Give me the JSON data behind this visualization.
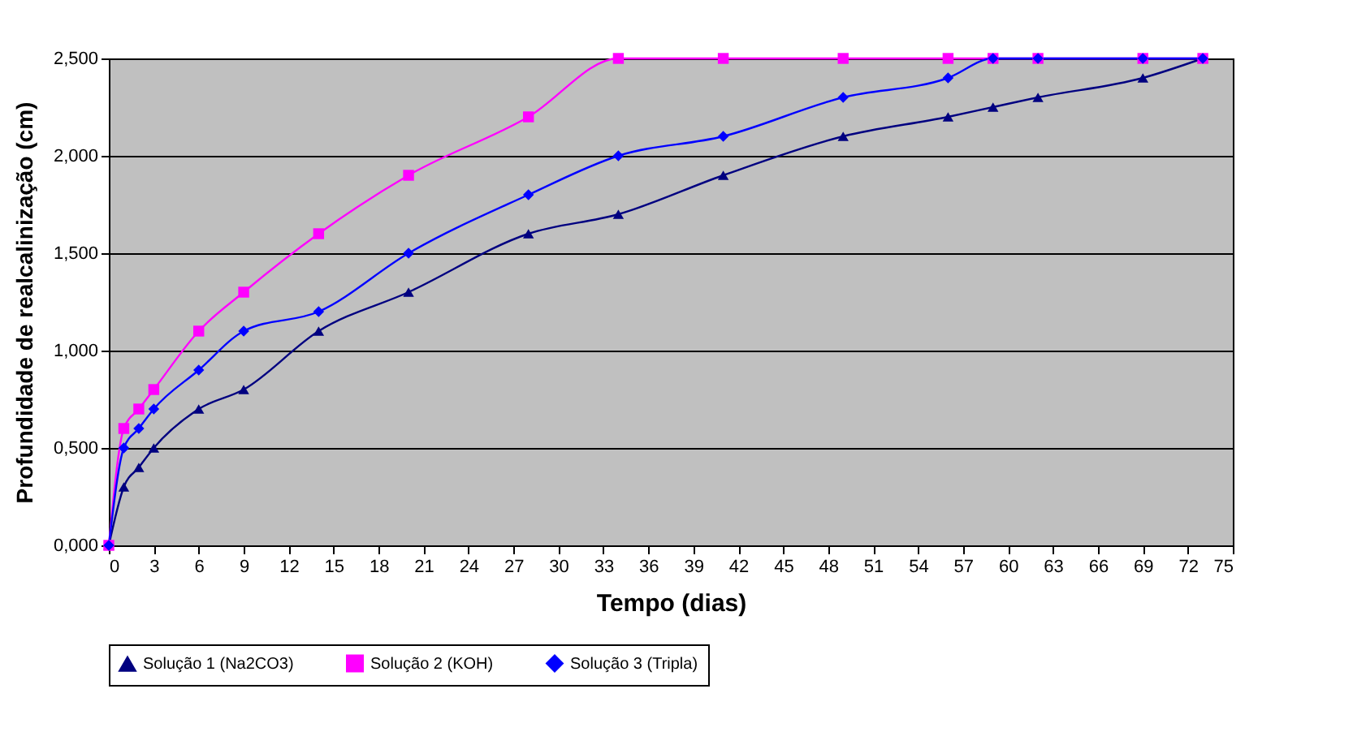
{
  "chart_data": {
    "type": "line",
    "xlabel": "Tempo (dias)",
    "ylabel": "Profundidade de realcalinização (cm)",
    "x": [
      0,
      1,
      2,
      3,
      6,
      9,
      14,
      20,
      28,
      34,
      41,
      49,
      56,
      59,
      62,
      69,
      73
    ],
    "series": [
      {
        "name": "Solução 1 (Na2CO3)",
        "color": "#000080",
        "marker": "triangle",
        "values": [
          0,
          0.3,
          0.4,
          0.5,
          0.7,
          0.8,
          1.1,
          1.3,
          1.6,
          1.7,
          1.9,
          2.1,
          2.2,
          2.25,
          2.3,
          2.4,
          2.5
        ]
      },
      {
        "name": "Solução 2 (KOH)",
        "color": "#ff00ff",
        "marker": "square",
        "values": [
          0,
          0.6,
          0.7,
          0.8,
          1.1,
          1.3,
          1.6,
          1.9,
          2.2,
          2.5,
          2.5,
          2.5,
          2.5,
          2.5,
          2.5,
          2.5,
          2.5
        ]
      },
      {
        "name": "Solução 3 (Tripla)",
        "color": "#0000ff",
        "marker": "diamond",
        "values": [
          0,
          0.5,
          0.6,
          0.7,
          0.9,
          1.1,
          1.2,
          1.5,
          1.8,
          2.0,
          2.1,
          2.3,
          2.4,
          2.5,
          2.5,
          2.5,
          2.5
        ]
      }
    ],
    "xlim": [
      0,
      75
    ],
    "xticks": [
      0,
      3,
      6,
      9,
      12,
      15,
      18,
      21,
      24,
      27,
      30,
      33,
      36,
      39,
      42,
      45,
      48,
      51,
      54,
      57,
      60,
      63,
      66,
      69,
      72,
      75
    ],
    "ylim": [
      0,
      2.5
    ],
    "yticks": [
      {
        "value": 0,
        "label": "0,000"
      },
      {
        "value": 0.5,
        "label": "0,500"
      },
      {
        "value": 1,
        "label": "1,000"
      },
      {
        "value": 1.5,
        "label": "1,500"
      },
      {
        "value": 2,
        "label": "2,000"
      },
      {
        "value": 2.5,
        "label": "2,500"
      }
    ],
    "grid": "y",
    "legend": "bottom",
    "line_style": "solid"
  }
}
